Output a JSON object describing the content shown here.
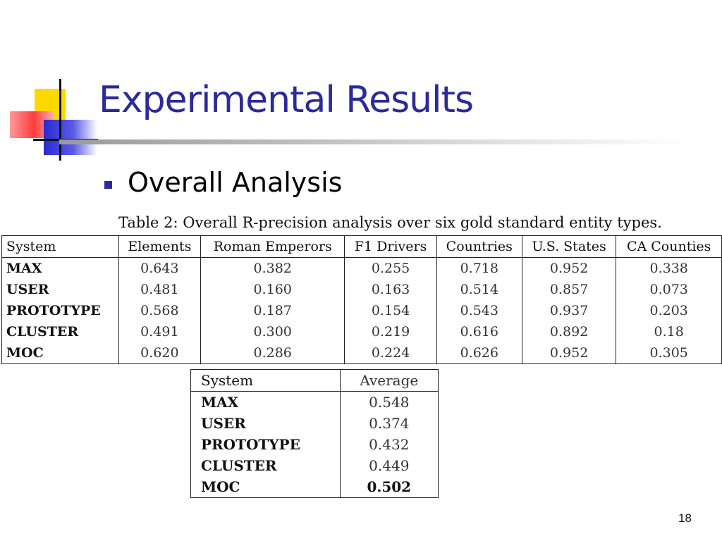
{
  "slide": {
    "title": "Experimental Results",
    "bullet": "Overall Analysis",
    "page_number": "18",
    "title_color": "#2b2b9a"
  },
  "table1": {
    "caption": "Table 2: Overall R-precision analysis over six gold standard entity types.",
    "headers": [
      "System",
      "Elements",
      "Roman Emperors",
      "F1 Drivers",
      "Countries",
      "U.S. States",
      "CA Counties"
    ],
    "rows": [
      {
        "system": "MAX",
        "values": [
          "0.643",
          "0.382",
          "0.255",
          "0.718",
          "0.952",
          "0.338"
        ]
      },
      {
        "system": "USER",
        "values": [
          "0.481",
          "0.160",
          "0.163",
          "0.514",
          "0.857",
          "0.073"
        ]
      },
      {
        "system": "PROTOTYPE",
        "values": [
          "0.568",
          "0.187",
          "0.154",
          "0.543",
          "0.937",
          "0.203"
        ]
      },
      {
        "system": "CLUSTER",
        "values": [
          "0.491",
          "0.300",
          "0.219",
          "0.616",
          "0.892",
          "0.18"
        ]
      },
      {
        "system": "MOC",
        "values": [
          "0.620",
          "0.286",
          "0.224",
          "0.626",
          "0.952",
          "0.305"
        ]
      }
    ]
  },
  "table2": {
    "headers": [
      "System",
      "Average"
    ],
    "rows": [
      {
        "system": "MAX",
        "average": "0.548"
      },
      {
        "system": "USER",
        "average": "0.374"
      },
      {
        "system": "PROTOTYPE",
        "average": "0.432"
      },
      {
        "system": "CLUSTER",
        "average": "0.449"
      },
      {
        "system": "MOC",
        "average": "0.502",
        "highlight": true
      }
    ]
  }
}
